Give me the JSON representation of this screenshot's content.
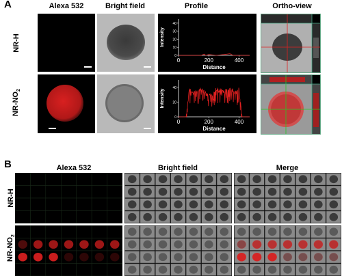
{
  "panel_a": {
    "letter": "A",
    "columns": [
      "Alexa 532",
      "Bright field",
      "Profile",
      "Ortho-view"
    ],
    "rows": [
      {
        "label_main": "NR-H",
        "label_sub": ""
      },
      {
        "label_main": "NR-NO",
        "label_sub": "2"
      }
    ],
    "profile": {
      "ylabel": "Intensity",
      "xlabel": "Distance",
      "x_ticks": [
        "0",
        "200",
        "400"
      ],
      "y_ticks_top": [
        "0",
        "10",
        "20",
        "30",
        "40"
      ],
      "y_ticks_bottom": [
        "0",
        "20",
        "40"
      ]
    }
  },
  "panel_b": {
    "letter": "B",
    "columns": [
      "Alexa 532",
      "Bright field",
      "Merge"
    ],
    "rows": [
      {
        "label_main": "NR-H",
        "label_sub": ""
      },
      {
        "label_main": "NR-NO",
        "label_sub": "2"
      }
    ]
  },
  "chart_data": [
    {
      "type": "line",
      "xlabel": "Distance",
      "ylabel": "Intensity",
      "xlim": [
        0,
        470
      ],
      "ylim": [
        0,
        45
      ],
      "x": [
        0,
        100,
        150,
        170,
        180,
        200,
        250,
        300,
        340,
        360,
        470
      ],
      "series": [
        {
          "values": [
            0,
            0,
            0,
            1.5,
            0,
            1,
            0,
            1,
            2,
            0,
            0
          ]
        }
      ]
    },
    {
      "type": "line",
      "xlabel": "Distance",
      "ylabel": "Intensity",
      "xlim": [
        0,
        470
      ],
      "ylim": [
        0,
        50
      ],
      "x": [
        0,
        50,
        70,
        100,
        150,
        200,
        250,
        300,
        350,
        380,
        400,
        420,
        470
      ],
      "series": [
        {
          "values": [
            0,
            0,
            40,
            35,
            40,
            30,
            40,
            38,
            40,
            35,
            40,
            0,
            0
          ]
        }
      ]
    }
  ],
  "colors": {
    "signal": "#e02020",
    "background": "#000000",
    "gray": "#b9b9b9"
  }
}
